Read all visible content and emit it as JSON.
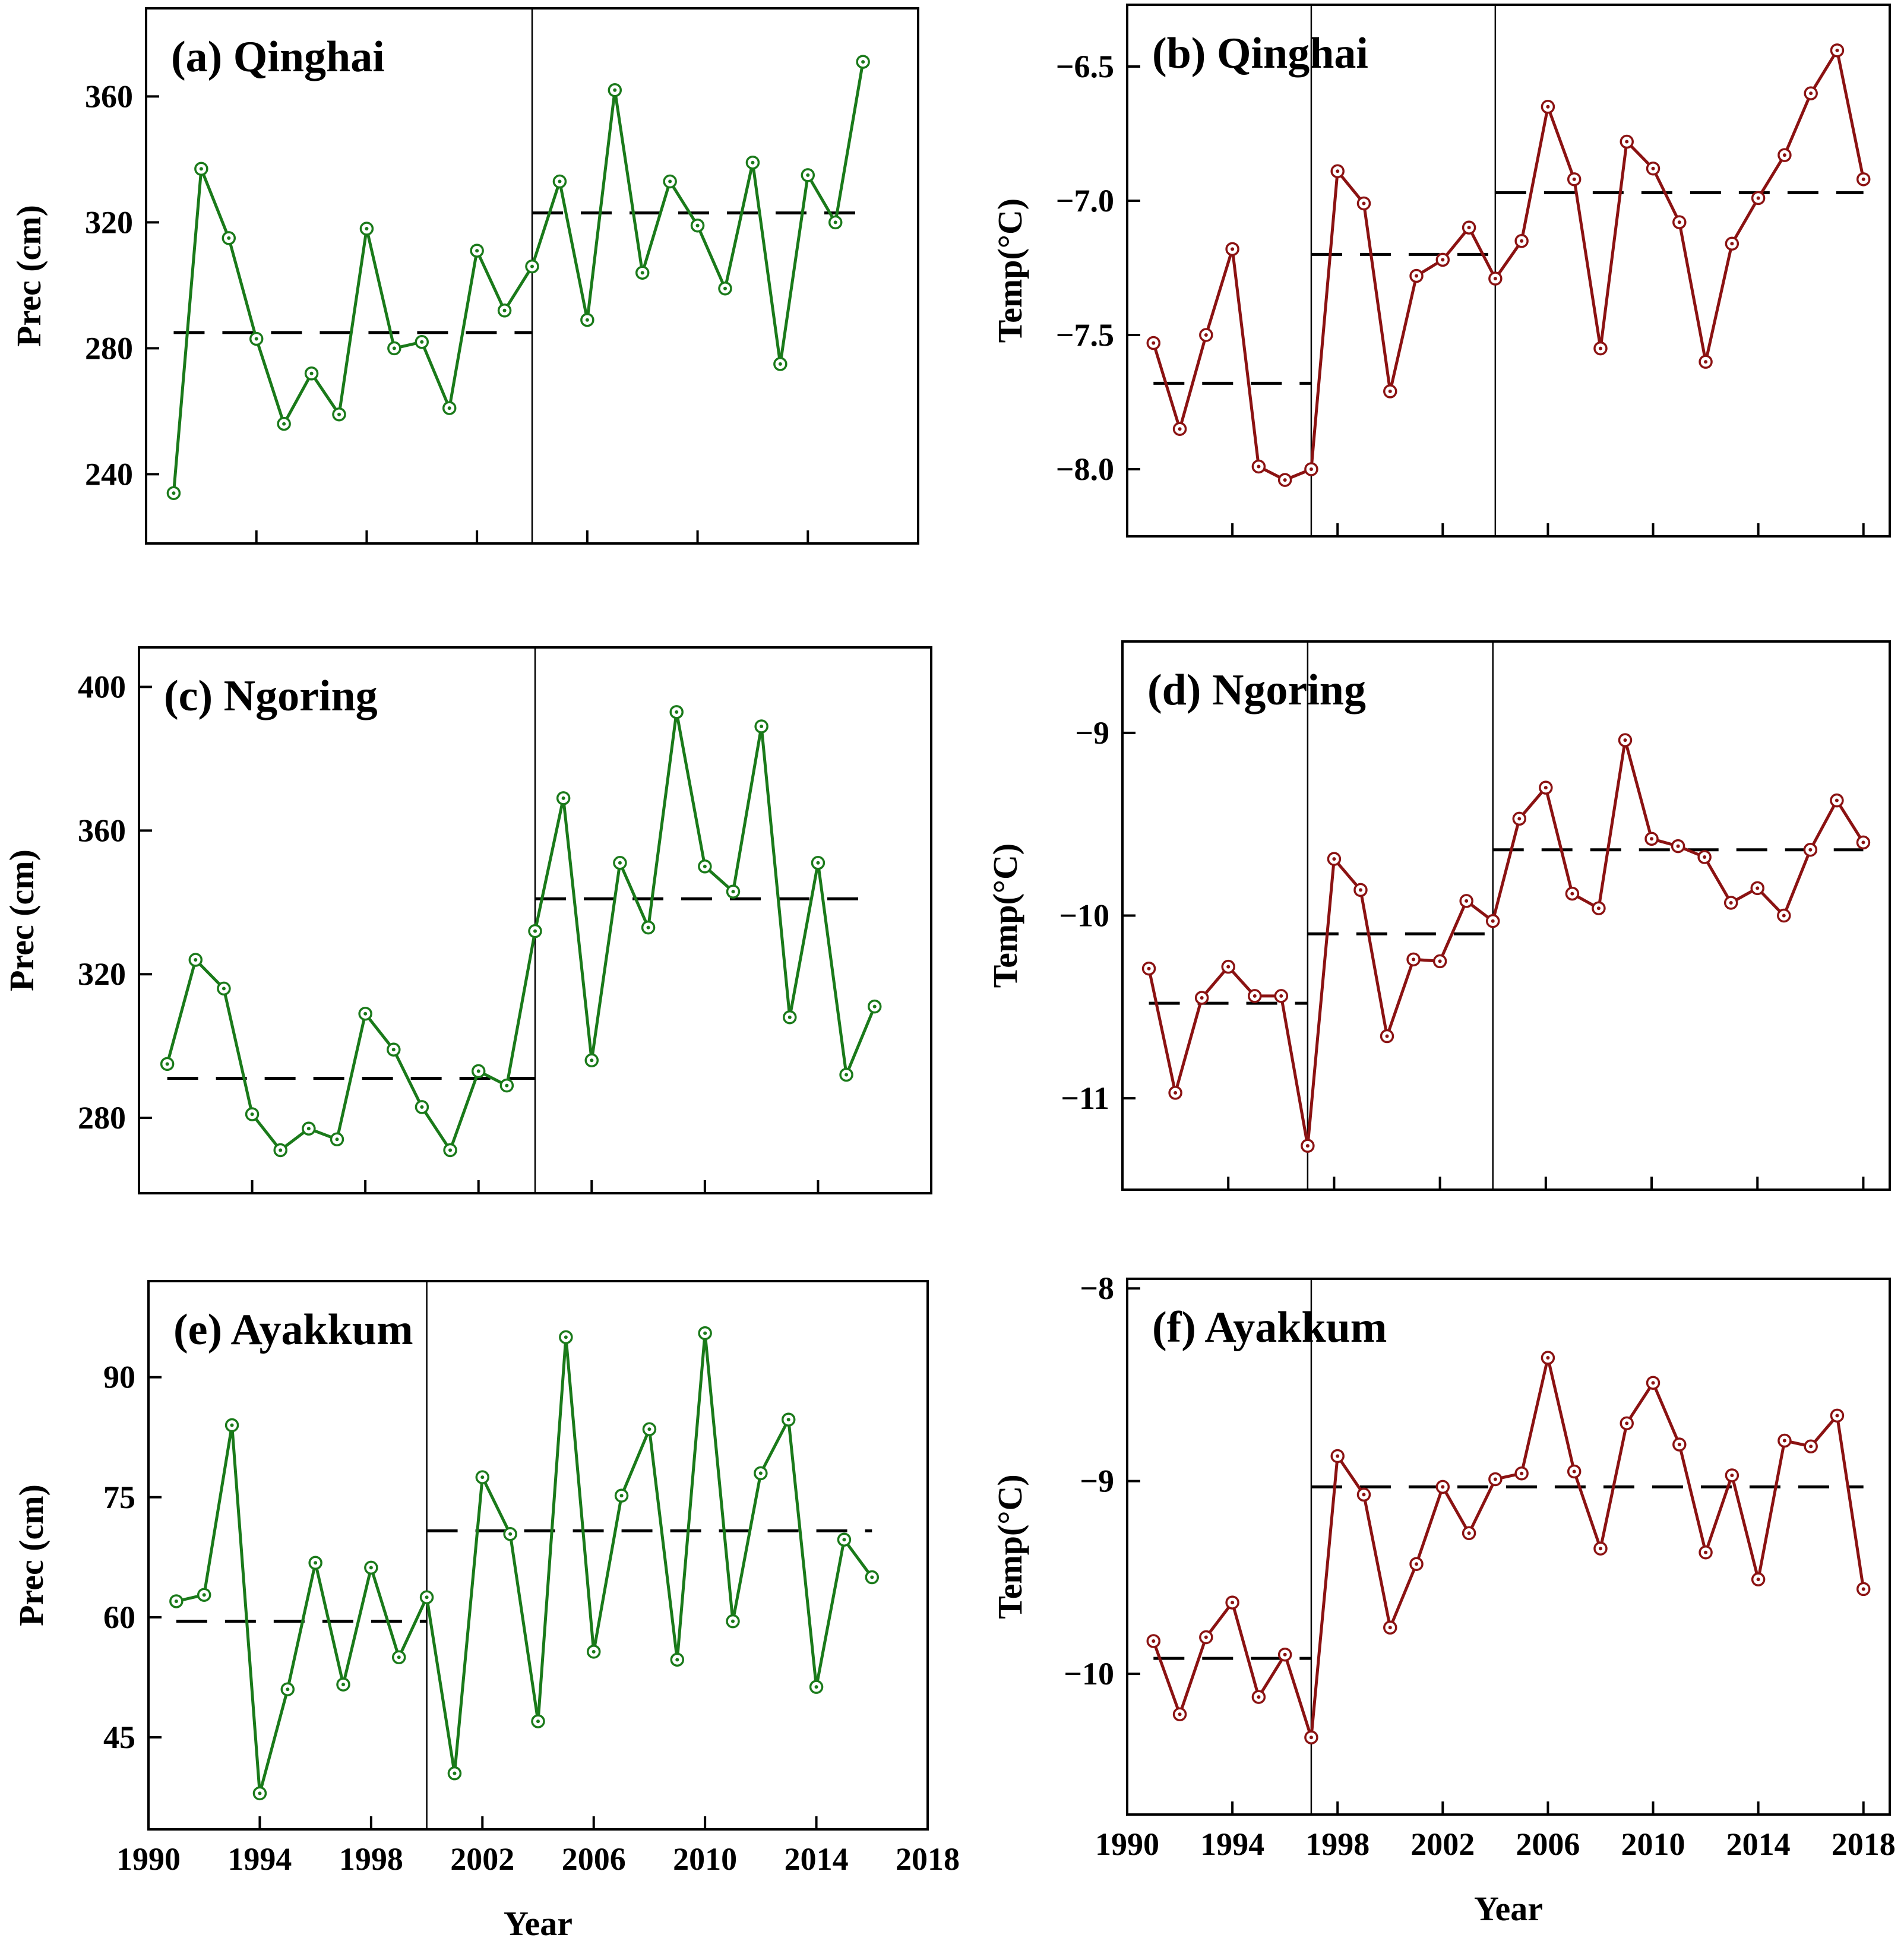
{
  "colors": {
    "precipitation": "#1a7a1a",
    "temperature": "#8b1212",
    "frame": "#000000",
    "mean_line": "#000000"
  },
  "chart_data": [
    {
      "id": "a",
      "type": "line",
      "title": "(a) Qinghai",
      "xlabel": "",
      "ylabel": "Prec (cm)",
      "xlim": [
        1990,
        2018
      ],
      "ylim": [
        218,
        388
      ],
      "yticks": [
        240,
        280,
        320,
        360
      ],
      "ytick_labels": [
        "240",
        "280",
        "320",
        "360"
      ],
      "xticks": [
        1990,
        1994,
        1998,
        2002,
        2006,
        2010,
        2014,
        2018
      ],
      "xtick_labels": [],
      "breakpoints": [
        2004
      ],
      "segment_means": [
        {
          "from": 1991,
          "to": 2004,
          "value": 285
        },
        {
          "from": 2004,
          "to": 2016,
          "value": 323
        }
      ],
      "series": [
        {
          "name": "Precipitation",
          "color_key": "precipitation",
          "x": [
            1991,
            1992,
            1993,
            1994,
            1995,
            1996,
            1997,
            1998,
            1999,
            2000,
            2001,
            2002,
            2003,
            2004,
            2005,
            2006,
            2007,
            2008,
            2009,
            2010,
            2011,
            2012,
            2013,
            2014,
            2015,
            2016
          ],
          "values": [
            234,
            337,
            315,
            283,
            256,
            272,
            259,
            318,
            280,
            282,
            261,
            311,
            292,
            306,
            333,
            289,
            362,
            304,
            333,
            319,
            299,
            339,
            275,
            335,
            320,
            371
          ]
        }
      ]
    },
    {
      "id": "b",
      "type": "line",
      "title": "(b) Qinghai",
      "xlabel": "",
      "ylabel": "Temp(°C)",
      "xlim": [
        1990,
        2019
      ],
      "ylim": [
        -8.25,
        -6.27
      ],
      "yticks": [
        -8.0,
        -7.5,
        -7.0,
        -6.5
      ],
      "ytick_labels": [
        "-8.0",
        "-7.5",
        "-7.0",
        "-6.5"
      ],
      "xticks": [
        1990,
        1994,
        1998,
        2002,
        2006,
        2010,
        2014,
        2018
      ],
      "xtick_labels": [],
      "breakpoints": [
        1997,
        2004
      ],
      "segment_means": [
        {
          "from": 1991,
          "to": 1997,
          "value": -7.68
        },
        {
          "from": 1997,
          "to": 2004,
          "value": -7.2
        },
        {
          "from": 2004,
          "to": 2018,
          "value": -6.97
        }
      ],
      "series": [
        {
          "name": "Temperature",
          "color_key": "temperature",
          "x": [
            1991,
            1992,
            1993,
            1994,
            1995,
            1996,
            1997,
            1998,
            1999,
            2000,
            2001,
            2002,
            2003,
            2004,
            2005,
            2006,
            2007,
            2008,
            2009,
            2010,
            2011,
            2012,
            2013,
            2014,
            2015,
            2016,
            2017,
            2018
          ],
          "values": [
            -7.53,
            -7.85,
            -7.5,
            -7.18,
            -7.99,
            -8.04,
            -8.0,
            -6.89,
            -7.01,
            -7.71,
            -7.28,
            -7.22,
            -7.1,
            -7.29,
            -7.15,
            -6.65,
            -6.92,
            -7.55,
            -6.78,
            -6.88,
            -7.08,
            -7.6,
            -7.16,
            -6.99,
            -6.83,
            -6.6,
            -6.44,
            -6.92
          ]
        }
      ]
    },
    {
      "id": "c",
      "type": "line",
      "title": "(c) Ngoring",
      "xlabel": "",
      "ylabel": "Prec (cm)",
      "xlim": [
        1990,
        2018
      ],
      "ylim": [
        259,
        411
      ],
      "yticks": [
        280,
        320,
        360,
        400
      ],
      "ytick_labels": [
        "280",
        "320",
        "360",
        "400"
      ],
      "xticks": [
        1990,
        1994,
        1998,
        2002,
        2006,
        2010,
        2014,
        2018
      ],
      "xtick_labels": [],
      "breakpoints": [
        2004
      ],
      "segment_means": [
        {
          "from": 1991,
          "to": 2004,
          "value": 291
        },
        {
          "from": 2004,
          "to": 2016,
          "value": 341
        }
      ],
      "series": [
        {
          "name": "Precipitation",
          "color_key": "precipitation",
          "x": [
            1991,
            1992,
            1993,
            1994,
            1995,
            1996,
            1997,
            1998,
            1999,
            2000,
            2001,
            2002,
            2003,
            2004,
            2005,
            2006,
            2007,
            2008,
            2009,
            2010,
            2011,
            2012,
            2013,
            2014,
            2015,
            2016
          ],
          "values": [
            295,
            324,
            316,
            281,
            271,
            277,
            274,
            309,
            299,
            283,
            271,
            293,
            289,
            332,
            369,
            296,
            351,
            333,
            393,
            350,
            343,
            389,
            308,
            351,
            292,
            311
          ]
        }
      ]
    },
    {
      "id": "d",
      "type": "line",
      "title": "(d) Ngoring",
      "xlabel": "",
      "ylabel": "Temp(°C)",
      "xlim": [
        1990,
        2019
      ],
      "ylim": [
        -11.5,
        -8.5
      ],
      "yticks": [
        -11,
        -10,
        -9
      ],
      "ytick_labels": [
        "-11",
        "-10",
        "-9"
      ],
      "xticks": [
        1990,
        1994,
        1998,
        2002,
        2006,
        2010,
        2014,
        2018
      ],
      "xtick_labels": [],
      "breakpoints": [
        1997,
        2004
      ],
      "segment_means": [
        {
          "from": 1991,
          "to": 1997,
          "value": -10.48
        },
        {
          "from": 1997,
          "to": 2004,
          "value": -10.1
        },
        {
          "from": 2004,
          "to": 2018,
          "value": -9.64
        }
      ],
      "series": [
        {
          "name": "Temperature",
          "color_key": "temperature",
          "x": [
            1991,
            1992,
            1993,
            1994,
            1995,
            1996,
            1997,
            1998,
            1999,
            2000,
            2001,
            2002,
            2003,
            2004,
            2005,
            2006,
            2007,
            2008,
            2009,
            2010,
            2011,
            2012,
            2013,
            2014,
            2015,
            2016,
            2017,
            2018
          ],
          "values": [
            -10.29,
            -10.97,
            -10.45,
            -10.28,
            -10.44,
            -10.44,
            -11.26,
            -9.69,
            -9.86,
            -10.66,
            -10.24,
            -10.25,
            -9.92,
            -10.03,
            -9.47,
            -9.3,
            -9.88,
            -9.96,
            -9.04,
            -9.58,
            -9.62,
            -9.68,
            -9.93,
            -9.85,
            -10.0,
            -9.64,
            -9.37,
            -9.6
          ]
        }
      ]
    },
    {
      "id": "e",
      "type": "line",
      "title": "(e) Ayakkum",
      "xlabel": "Year",
      "ylabel": "Prec (cm)",
      "xlim": [
        1990,
        2018
      ],
      "ylim": [
        33.5,
        102
      ],
      "yticks": [
        45,
        60,
        75,
        90
      ],
      "ytick_labels": [
        "45",
        "60",
        "75",
        "90"
      ],
      "xticks": [
        1990,
        1994,
        1998,
        2002,
        2006,
        2010,
        2014,
        2018
      ],
      "xtick_labels": [
        "1990",
        "1994",
        "1998",
        "2002",
        "2006",
        "2010",
        "2014",
        "2018"
      ],
      "breakpoints": [
        2000
      ],
      "segment_means": [
        {
          "from": 1991,
          "to": 2000,
          "value": 59.5
        },
        {
          "from": 2000,
          "to": 2016,
          "value": 70.8
        }
      ],
      "series": [
        {
          "name": "Precipitation",
          "color_key": "precipitation",
          "x": [
            1991,
            1992,
            1993,
            1994,
            1995,
            1996,
            1997,
            1998,
            1999,
            2000,
            2001,
            2002,
            2003,
            2004,
            2005,
            2006,
            2007,
            2008,
            2009,
            2010,
            2011,
            2012,
            2013,
            2014,
            2015,
            2016
          ],
          "values": [
            62,
            62.8,
            84,
            38,
            51,
            66.8,
            51.6,
            66.2,
            55,
            62.5,
            40.5,
            77.5,
            70.4,
            47,
            95,
            55.7,
            75.2,
            83.5,
            54.7,
            95.5,
            59.5,
            78,
            84.7,
            51.3,
            69.7,
            65
          ]
        }
      ]
    },
    {
      "id": "f",
      "type": "line",
      "title": "(f) Ayakkum",
      "xlabel": "Year",
      "ylabel": "Temp(°C)",
      "xlim": [
        1990,
        2019
      ],
      "ylim": [
        -10.73,
        -7.95
      ],
      "yticks": [
        -10,
        -9,
        -8
      ],
      "ytick_labels": [
        "-10",
        "-9",
        "-8"
      ],
      "xticks": [
        1990,
        1994,
        1998,
        2002,
        2006,
        2010,
        2014,
        2018
      ],
      "xtick_labels": [
        "1990",
        "1994",
        "1998",
        "2002",
        "2006",
        "2010",
        "2014",
        "2018"
      ],
      "breakpoints": [
        1997
      ],
      "segment_means": [
        {
          "from": 1991,
          "to": 1997,
          "value": -9.92
        },
        {
          "from": 1997,
          "to": 2018,
          "value": -9.03
        }
      ],
      "series": [
        {
          "name": "Temperature",
          "color_key": "temperature",
          "x": [
            1991,
            1992,
            1993,
            1994,
            1995,
            1996,
            1997,
            1998,
            1999,
            2000,
            2001,
            2002,
            2003,
            2004,
            2005,
            2006,
            2007,
            2008,
            2009,
            2010,
            2011,
            2012,
            2013,
            2014,
            2015,
            2016,
            2017,
            2018
          ],
          "values": [
            -9.83,
            -10.21,
            -9.81,
            -9.63,
            -10.12,
            -9.9,
            -10.33,
            -8.87,
            -9.07,
            -9.76,
            -9.43,
            -9.03,
            -9.27,
            -8.99,
            -8.96,
            -8.36,
            -8.95,
            -9.35,
            -8.7,
            -8.49,
            -8.81,
            -9.37,
            -8.97,
            -9.51,
            -8.79,
            -8.82,
            -8.66,
            -9.56
          ]
        }
      ]
    }
  ]
}
